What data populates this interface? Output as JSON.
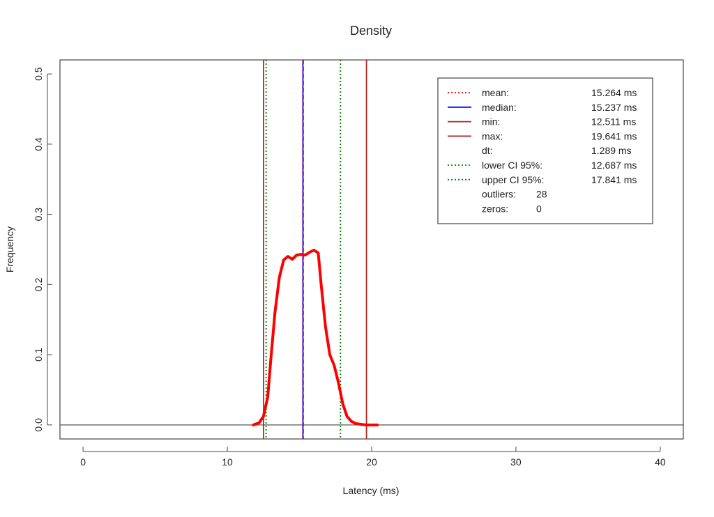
{
  "chart_data": {
    "type": "line",
    "title": "Density",
    "xlabel": "Latency (ms)",
    "ylabel": "Frequency",
    "xlim": [
      -1.6,
      41.6
    ],
    "ylim": [
      -0.02,
      0.52
    ],
    "x_ticks": [
      "0",
      "10",
      "20",
      "30",
      "40"
    ],
    "y_ticks": [
      "0.0",
      "0.1",
      "0.2",
      "0.3",
      "0.4",
      "0.5"
    ],
    "series": [
      {
        "color": "#ff0000",
        "x": [
          11.8,
          12.2,
          12.5,
          12.8,
          13.0,
          13.3,
          13.6,
          13.9,
          14.2,
          14.5,
          14.8,
          15.1,
          15.4,
          15.7,
          16.0,
          16.3,
          16.5,
          16.8,
          17.1,
          17.4,
          17.7,
          18.0,
          18.3,
          18.6,
          18.9,
          19.2,
          19.6,
          20.0,
          20.4
        ],
        "y": [
          0.0,
          0.003,
          0.012,
          0.04,
          0.09,
          0.16,
          0.21,
          0.235,
          0.24,
          0.236,
          0.242,
          0.243,
          0.242,
          0.246,
          0.249,
          0.245,
          0.2,
          0.14,
          0.1,
          0.085,
          0.06,
          0.03,
          0.012,
          0.005,
          0.002,
          0.001,
          0.0,
          0.0,
          0.0
        ]
      }
    ],
    "vlines": [
      {
        "name": "min",
        "x": 12.511,
        "color": "#b22222",
        "style": "solid"
      },
      {
        "name": "lower CI 95%",
        "x": 12.687,
        "color": "#008000",
        "style": "dotted"
      },
      {
        "name": "median",
        "x": 15.237,
        "color": "#0000ff",
        "style": "solid"
      },
      {
        "name": "mean",
        "x": 15.264,
        "color": "#ff0000",
        "style": "dashed"
      },
      {
        "name": "upper CI 95%",
        "x": 17.841,
        "color": "#008000",
        "style": "dotted"
      },
      {
        "name": "max",
        "x": 19.641,
        "color": "#b22222",
        "style": "solid"
      }
    ],
    "hline": {
      "y": 0.0,
      "color": "#555555"
    },
    "legend": {
      "position": "top-right",
      "entries": [
        {
          "label": "mean:",
          "value": "15.264 ms",
          "color": "#ff0000",
          "style": "dotted"
        },
        {
          "label": "median:",
          "value": "15.237 ms",
          "color": "#0000ff",
          "style": "solid"
        },
        {
          "label": "min:",
          "value": "12.511 ms",
          "color": "#b22222",
          "style": "solid"
        },
        {
          "label": "max:",
          "value": "19.641 ms",
          "color": "#b22222",
          "style": "solid"
        },
        {
          "label": "dt:",
          "value": "1.289 ms",
          "color": "",
          "style": "none"
        },
        {
          "label": "lower CI 95%:",
          "value": "12.687 ms",
          "color": "#008000",
          "style": "dotted"
        },
        {
          "label": "upper CI 95%:",
          "value": "17.841 ms",
          "color": "#008000",
          "style": "dotted"
        },
        {
          "label": "outliers:",
          "value": "28",
          "color": "",
          "style": "none"
        },
        {
          "label": "zeros:",
          "value": "0",
          "color": "",
          "style": "none"
        }
      ]
    }
  }
}
